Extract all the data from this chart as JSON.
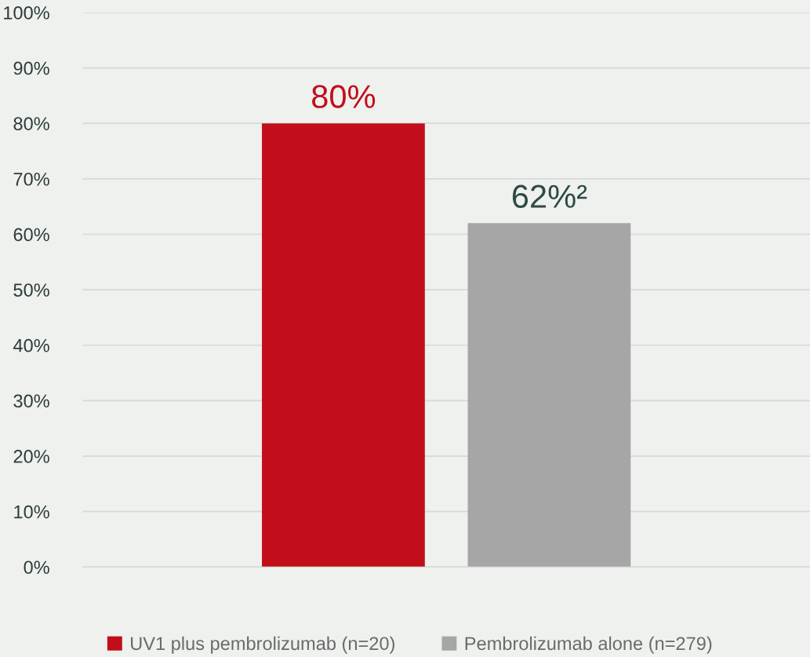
{
  "chart_data": {
    "type": "bar",
    "categories": [
      null
    ],
    "series": [
      {
        "name": "UV1 plus pembrolizumab (n=20)",
        "color": "#c20e1a",
        "values": [
          80
        ],
        "value_labels": [
          "80%"
        ]
      },
      {
        "name": "Pembrolizumab alone (n=279)",
        "color": "#a6a6a6",
        "values": [
          62
        ],
        "value_labels": [
          "62%²"
        ]
      }
    ],
    "ylim": [
      0,
      100
    ],
    "yticks": [
      {
        "value": 0,
        "label": "0%"
      },
      {
        "value": 10,
        "label": "10%"
      },
      {
        "value": 20,
        "label": "20%"
      },
      {
        "value": 30,
        "label": "30%"
      },
      {
        "value": 40,
        "label": "40%"
      },
      {
        "value": 50,
        "label": "50%"
      },
      {
        "value": 60,
        "label": "60%"
      },
      {
        "value": 70,
        "label": "70%"
      },
      {
        "value": 80,
        "label": "80%"
      },
      {
        "value": 90,
        "label": "90%"
      },
      {
        "value": 100,
        "label": "100%"
      }
    ],
    "grid": "y",
    "legend": "bottom",
    "tick_labels": "y"
  }
}
